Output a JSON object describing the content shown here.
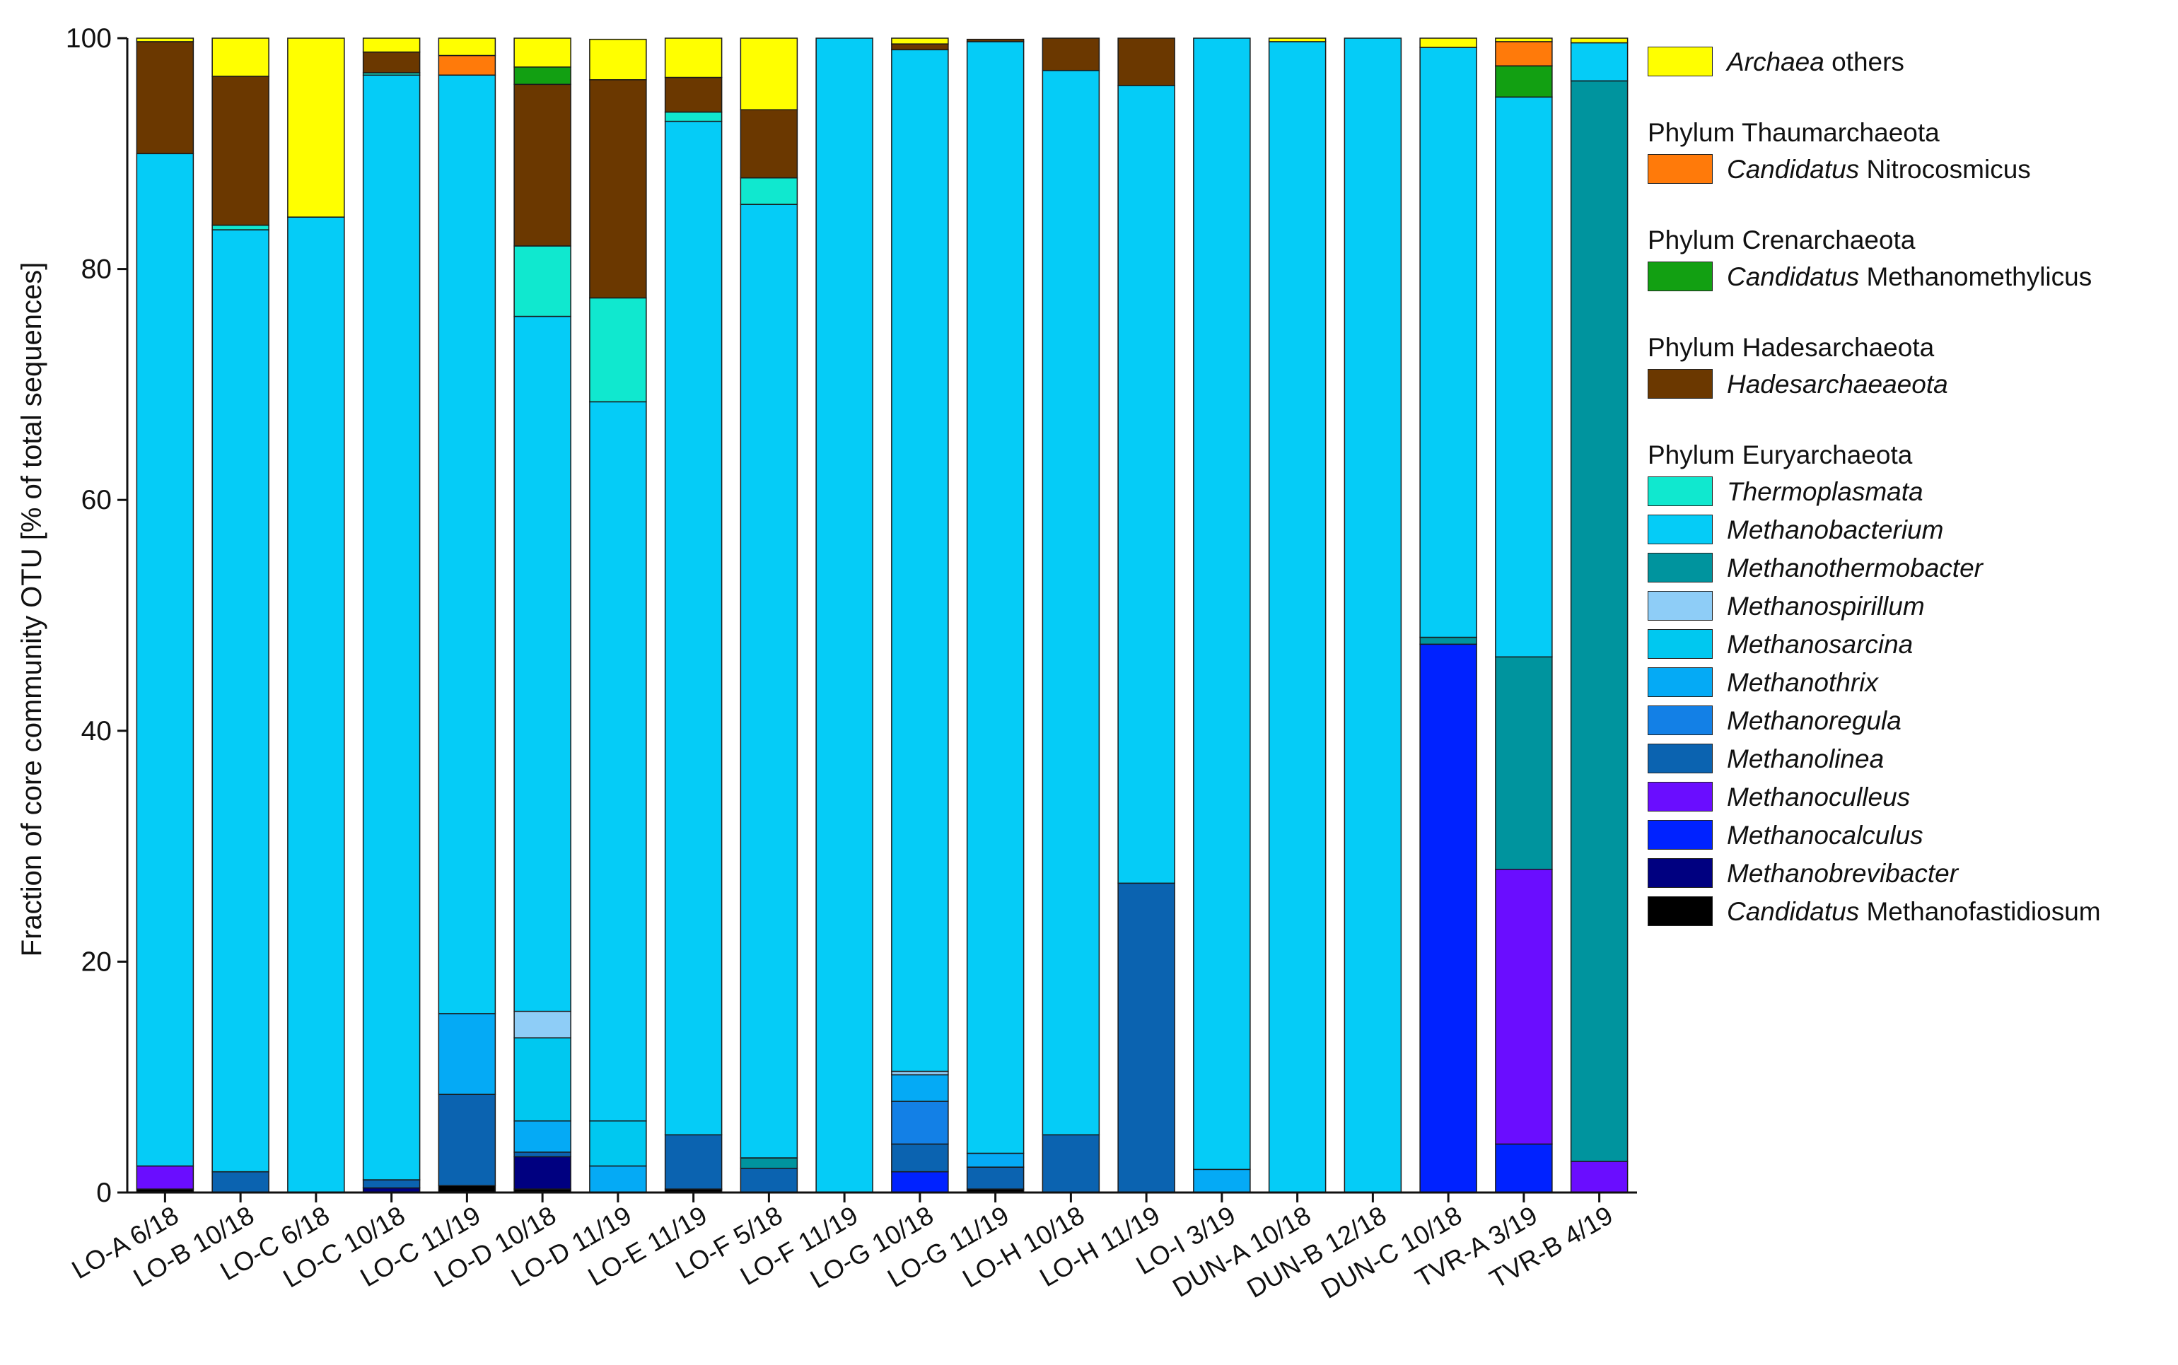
{
  "chart_data": {
    "type": "stacked-bar",
    "ylabel": "Fraction of core community OTU [% of total sequences]",
    "xlabel": "",
    "ylim": [
      0,
      100
    ],
    "yticks": [
      0,
      20,
      40,
      60,
      80,
      100
    ],
    "categories": [
      "LO-A 6/18",
      "LO-B 10/18",
      "LO-C 6/18",
      "LO-C 10/18",
      "LO-C 11/19",
      "LO-D 10/18",
      "LO-D 11/19",
      "LO-E 11/19",
      "LO-F 5/18",
      "LO-F 11/19",
      "LO-G 10/18",
      "LO-G 11/19",
      "LO-H 10/18",
      "LO-H 11/19",
      "LO-I 3/19",
      "DUN-A 10/18",
      "DUN-B 12/18",
      "DUN-C 10/18",
      "TVR-A 3/19",
      "TVR-B 4/19"
    ],
    "series": [
      {
        "name": "Candidatus Methanofastidiosum",
        "color": "#000000",
        "values": [
          0.3,
          0,
          0,
          0,
          0.6,
          0.3,
          0,
          0.3,
          0,
          0,
          0,
          0.3,
          0,
          0,
          0,
          0,
          0,
          0,
          0,
          0
        ]
      },
      {
        "name": "Methanobrevibacter",
        "color": "#000080",
        "values": [
          0,
          0,
          0,
          0.4,
          0,
          2.8,
          0,
          0,
          0,
          0,
          0,
          0,
          0,
          0,
          0,
          0,
          0,
          0,
          0,
          0
        ]
      },
      {
        "name": "Methanocalculus",
        "color": "#0022ff",
        "values": [
          0,
          0,
          0,
          0,
          0,
          0,
          0,
          0,
          0,
          0,
          1.8,
          0,
          0,
          0,
          0,
          0,
          0,
          47.5,
          4.2,
          0
        ]
      },
      {
        "name": "Methanoculleus",
        "color": "#6a0dff",
        "values": [
          2.0,
          0,
          0,
          0,
          0,
          0,
          0,
          0,
          0,
          0,
          0,
          0,
          0,
          0,
          0,
          0,
          0,
          0,
          23.8,
          2.7
        ]
      },
      {
        "name": "Methanolinea",
        "color": "#0b63b0",
        "values": [
          0,
          1.8,
          0,
          0.7,
          7.9,
          0.4,
          0,
          4.7,
          2.1,
          0,
          2.4,
          1.9,
          5.0,
          26.8,
          0,
          0,
          0,
          0,
          0,
          0
        ]
      },
      {
        "name": "Methanoregula",
        "color": "#1380e6",
        "values": [
          0,
          0,
          0,
          0,
          0,
          0,
          0,
          0,
          0,
          0,
          3.7,
          0,
          0,
          0,
          0,
          0,
          0,
          0,
          0,
          0
        ]
      },
      {
        "name": "Methanothrix",
        "color": "#05aaf5",
        "values": [
          0,
          0,
          0,
          0,
          7.0,
          2.7,
          2.3,
          0,
          0,
          0,
          2.3,
          1.2,
          0,
          0,
          2.0,
          0,
          0,
          0,
          0,
          0
        ]
      },
      {
        "name": "Methanosarcina",
        "color": "#00c8f0",
        "values": [
          0,
          0,
          0,
          0,
          0,
          7.2,
          3.9,
          0,
          0,
          0,
          0,
          0,
          0,
          0,
          0,
          0,
          0,
          0,
          0,
          0
        ]
      },
      {
        "name": "Methanospirillum",
        "color": "#8ecdf7",
        "values": [
          0,
          0,
          0,
          0,
          0,
          2.3,
          0,
          0,
          0,
          0,
          0.3,
          0,
          0,
          0,
          0,
          0,
          0,
          0,
          0,
          0
        ]
      },
      {
        "name": "Methanothermobacter",
        "color": "#00949e",
        "values": [
          0,
          0,
          0,
          0,
          0,
          0,
          0,
          0,
          0.9,
          0,
          0,
          0,
          0,
          0,
          0,
          0,
          0,
          0.6,
          18.4,
          93.6
        ]
      },
      {
        "name": "Methanobacterium",
        "color": "#05ccf7",
        "values": [
          87.7,
          81.6,
          84.5,
          95.7,
          81.3,
          60.2,
          62.3,
          87.8,
          82.6,
          100,
          88.5,
          96.3,
          92.2,
          69.1,
          98.0,
          99.7,
          100,
          51.1,
          48.5,
          3.3
        ]
      },
      {
        "name": "Thermoplasmata",
        "color": "#10e8cf",
        "values": [
          0,
          0.4,
          0,
          0.2,
          0,
          6.1,
          9.0,
          0.8,
          2.3,
          0,
          0,
          0,
          0,
          0,
          0,
          0,
          0,
          0,
          0,
          0
        ]
      },
      {
        "name": "Hadesarchaeaeota",
        "color": "#6b3800",
        "values": [
          9.7,
          12.9,
          0,
          1.8,
          0,
          14.0,
          18.9,
          3.0,
          5.9,
          0,
          0.5,
          0.2,
          2.8,
          4.1,
          0,
          0,
          0,
          0,
          0,
          0
        ]
      },
      {
        "name": "Candidatus Methanomethylicus",
        "color": "#12a012",
        "values": [
          0,
          0,
          0,
          0,
          0,
          1.5,
          0,
          0,
          0,
          0,
          0,
          0,
          0,
          0,
          0,
          0,
          0,
          0,
          2.7,
          0
        ]
      },
      {
        "name": "Candidatus Nitrocosmicus",
        "color": "#ff7a0a",
        "values": [
          0,
          0,
          0,
          0,
          1.7,
          0,
          0,
          0,
          0,
          0,
          0,
          0,
          0,
          0,
          0,
          0,
          0,
          0,
          2.1,
          0
        ]
      },
      {
        "name": "Archaea others",
        "color": "#ffff00",
        "values": [
          0.3,
          3.3,
          15.5,
          1.2,
          1.5,
          2.5,
          3.5,
          3.4,
          6.2,
          0,
          0.5,
          0,
          0,
          0,
          0,
          0.3,
          0,
          0.8,
          0.3,
          0.4
        ]
      }
    ]
  },
  "legend": {
    "groups": [
      {
        "phylum": "",
        "items": [
          {
            "italic": "Archaea",
            "rest": " others",
            "color": "#ffff00"
          }
        ]
      },
      {
        "phylum": "Phylum Thaumarchaeota",
        "items": [
          {
            "italic": "Candidatus",
            "rest": " Nitrocosmicus",
            "color": "#ff7a0a"
          }
        ]
      },
      {
        "phylum": "Phylum Crenarchaeota",
        "items": [
          {
            "italic": " Candidatus",
            "rest": " Methanomethylicus",
            "color": "#12a012"
          }
        ]
      },
      {
        "phylum": "Phylum Hadesarchaeota",
        "items": [
          {
            "italic": "Hadesarchaeaeota",
            "rest": "",
            "color": "#6b3800"
          }
        ]
      },
      {
        "phylum": "Phylum Euryarchaeota",
        "items": [
          {
            "italic": "Thermoplasmata",
            "rest": "",
            "color": "#10e8cf"
          },
          {
            "italic": "Methanobacterium",
            "rest": "",
            "color": "#05ccf7"
          },
          {
            "italic": "Methanothermobacter",
            "rest": "",
            "color": "#00949e"
          },
          {
            "italic": "Methanospirillum",
            "rest": "",
            "color": "#8ecdf7"
          },
          {
            "italic": "Methanosarcina",
            "rest": "",
            "color": "#00c8f0"
          },
          {
            "italic": "Methanothrix",
            "rest": "",
            "color": "#05aaf5"
          },
          {
            "italic": "Methanoregula",
            "rest": "",
            "color": "#1380e6"
          },
          {
            "italic": "Methanolinea",
            "rest": "",
            "color": "#0b63b0"
          },
          {
            "italic": "Methanoculleus",
            "rest": "",
            "color": "#6a0dff"
          },
          {
            "italic": "Methanocalculus",
            "rest": "",
            "color": "#0022ff"
          },
          {
            "italic": "Methanobrevibacter",
            "rest": "",
            "color": "#000080"
          },
          {
            "italic": "Candidatus",
            "rest": " Methanofastidiosum",
            "color": "#000000"
          }
        ]
      }
    ]
  }
}
